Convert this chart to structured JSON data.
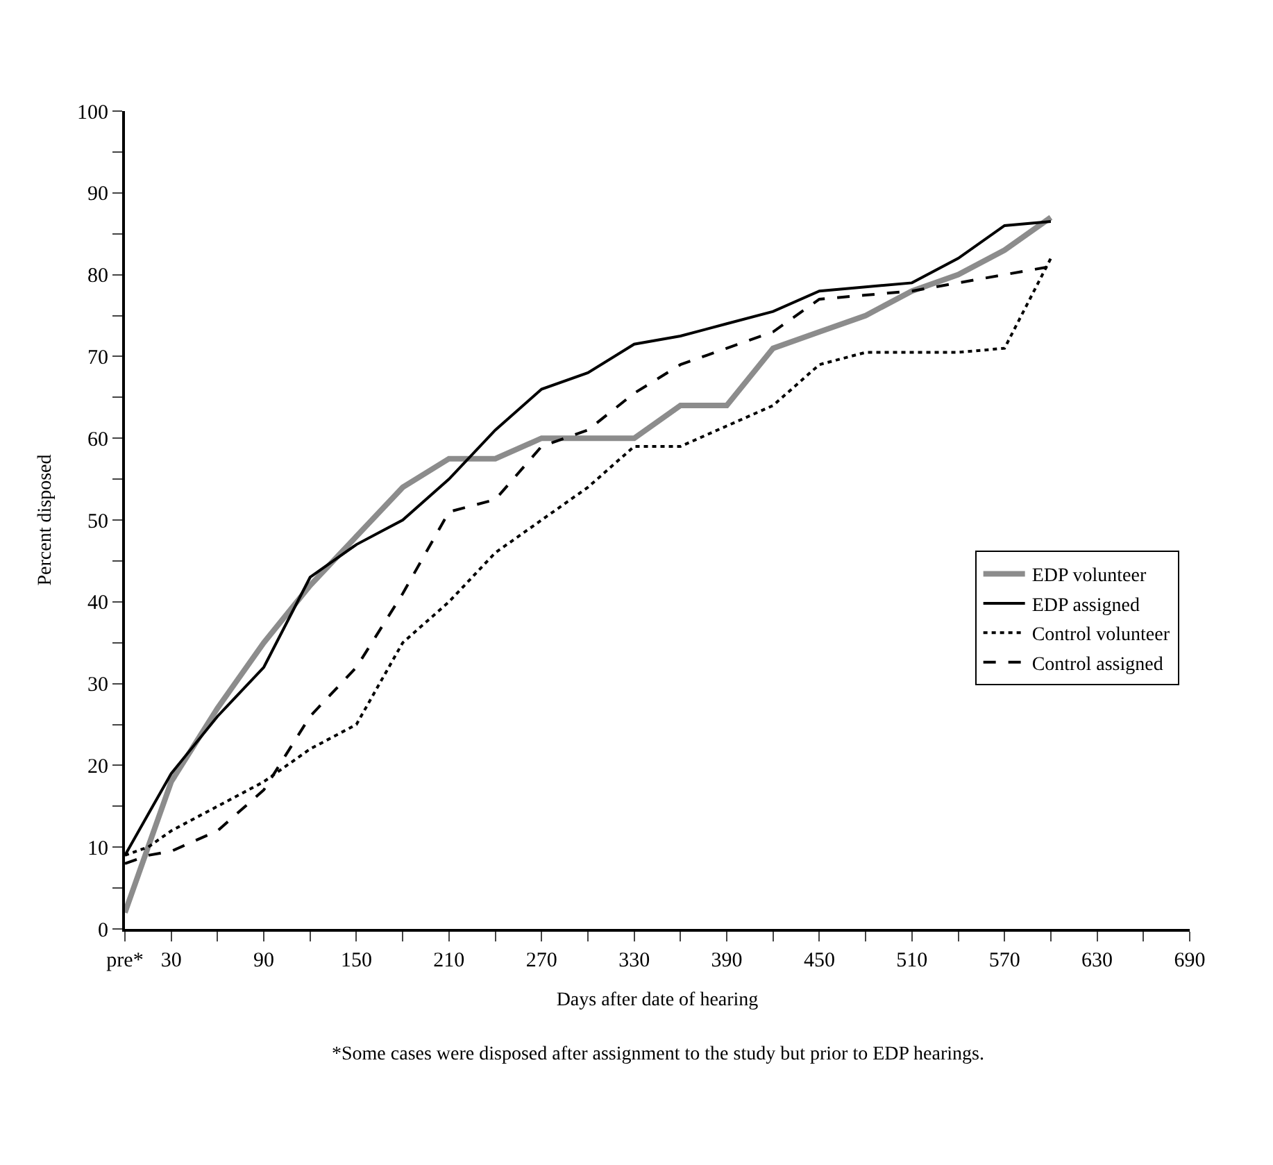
{
  "chart_data": {
    "type": "line",
    "xlabel": "Days after date of hearing",
    "ylabel": "Percent disposed",
    "x": [
      0,
      15,
      30,
      60,
      90,
      120,
      150,
      180,
      210,
      240,
      270,
      300,
      330,
      360,
      390,
      420,
      450,
      480,
      510,
      540,
      570,
      600
    ],
    "series": [
      {
        "name": "EDP volunteer",
        "color": "#8c8c8c",
        "line_style": "solid",
        "values": [
          2,
          10,
          18,
          27,
          35,
          42,
          48,
          54,
          57.5,
          57.5,
          60,
          60,
          60,
          64,
          64,
          71,
          73,
          75,
          78,
          80,
          83,
          87
        ]
      },
      {
        "name": "EDP assigned",
        "color": "#000000",
        "line_style": "solid",
        "values": [
          9,
          14,
          19,
          26,
          32,
          43,
          47,
          50,
          55,
          61,
          66,
          68,
          71.5,
          72.5,
          74,
          75.5,
          78,
          78.5,
          79,
          82,
          86,
          86.5
        ]
      },
      {
        "name": "Control volunteer",
        "color": "#000000",
        "line_style": "dotted",
        "values": [
          9,
          10,
          12,
          15,
          18,
          22,
          25,
          35,
          40,
          46,
          50,
          54,
          59,
          59,
          61.5,
          64,
          69,
          70.5,
          70.5,
          70.5,
          71,
          82
        ]
      },
      {
        "name": "Control assigned",
        "color": "#000000",
        "line_style": "dashed",
        "values": [
          8,
          9,
          9.5,
          12,
          17,
          26,
          32,
          41,
          51,
          52.5,
          59,
          61,
          65.5,
          69,
          71,
          73,
          77,
          77.5,
          78,
          79,
          80,
          81
        ]
      }
    ],
    "xlim": [
      0,
      690
    ],
    "xticks": [
      {
        "value": 0,
        "label": "pre*"
      },
      30,
      {
        "value": 60,
        "label": null
      },
      90,
      {
        "value": 120,
        "label": null
      },
      150,
      {
        "value": 180,
        "label": null
      },
      210,
      {
        "value": 240,
        "label": null
      },
      270,
      {
        "value": 300,
        "label": null
      },
      330,
      {
        "value": 360,
        "label": null
      },
      390,
      {
        "value": 420,
        "label": null
      },
      450,
      {
        "value": 480,
        "label": null
      },
      510,
      {
        "value": 540,
        "label": null
      },
      570,
      {
        "value": 600,
        "label": null
      },
      630,
      {
        "value": 660,
        "label": null
      },
      690
    ],
    "ylim": [
      0,
      100
    ],
    "yticks": [
      0,
      {
        "value": 5,
        "label": null
      },
      10,
      {
        "value": 15,
        "label": null
      },
      20,
      {
        "value": 25,
        "label": null
      },
      30,
      {
        "value": 35,
        "label": null
      },
      40,
      {
        "value": 45,
        "label": null
      },
      50,
      {
        "value": 55,
        "label": null
      },
      60,
      {
        "value": 65,
        "label": null
      },
      70,
      {
        "value": 75,
        "label": null
      },
      80,
      {
        "value": 85,
        "label": null
      },
      90,
      {
        "value": 95,
        "label": null
      },
      100
    ],
    "legend": "right",
    "marker": "none",
    "annotations": [
      "*Some cases were disposed after assignment to the study but prior to EDP hearings."
    ]
  }
}
